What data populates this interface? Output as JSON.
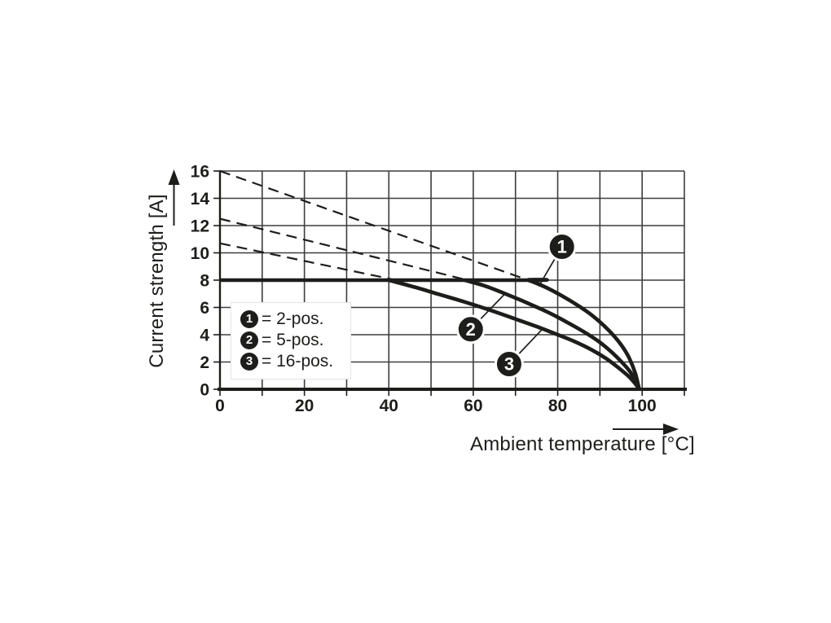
{
  "chart_data": {
    "type": "line",
    "xlabel": "Ambient temperature [°C]",
    "ylabel": "Current strength [A]",
    "xlim": [
      0,
      110
    ],
    "ylim": [
      0,
      16
    ],
    "xgrid_step": 10,
    "ygrid_step": 2,
    "grid": true,
    "xtick_values": [
      0,
      20,
      40,
      60,
      80,
      100
    ],
    "xtick_labels": [
      "0",
      "20",
      "40",
      "60",
      "80",
      "100"
    ],
    "ytick_values": [
      16,
      14,
      12,
      10,
      8,
      6,
      4,
      2,
      0
    ],
    "ytick_labels": [
      "16",
      "14",
      "12",
      "10",
      "8",
      "6",
      "4",
      "2",
      "0"
    ],
    "colors": {
      "ink": "#1d1d1b",
      "grid": "#3d3d3d",
      "background": "#ffffff"
    },
    "current_limit_A": 8,
    "series": [
      {
        "name": "2-pos.",
        "marker": "1",
        "style": "solid",
        "points": [
          [
            0,
            8
          ],
          [
            72,
            8
          ],
          [
            73,
            8
          ],
          [
            77,
            7.5
          ],
          [
            81,
            6.85
          ],
          [
            85,
            6.1
          ],
          [
            88,
            5.45
          ],
          [
            91,
            4.65
          ],
          [
            93.5,
            3.85
          ],
          [
            95.5,
            3.05
          ],
          [
            97,
            2.25
          ],
          [
            98.4,
            1.15
          ],
          [
            99.3,
            0
          ]
        ]
      },
      {
        "name": "5-pos.",
        "marker": "2",
        "style": "solid",
        "points": [
          [
            58,
            8
          ],
          [
            63,
            7.55
          ],
          [
            68,
            6.95
          ],
          [
            73,
            6.3
          ],
          [
            78,
            5.6
          ],
          [
            82,
            4.95
          ],
          [
            86,
            4.25
          ],
          [
            89.5,
            3.55
          ],
          [
            92.5,
            2.8
          ],
          [
            95,
            2.05
          ],
          [
            97,
            1.35
          ],
          [
            98.5,
            0.6
          ],
          [
            99.3,
            0
          ]
        ]
      },
      {
        "name": "16-pos.",
        "marker": "3",
        "style": "solid",
        "points": [
          [
            40,
            8
          ],
          [
            46,
            7.5
          ],
          [
            52,
            6.95
          ],
          [
            58,
            6.4
          ],
          [
            64,
            5.8
          ],
          [
            70,
            5.15
          ],
          [
            75,
            4.6
          ],
          [
            80,
            4.0
          ],
          [
            84,
            3.5
          ],
          [
            88,
            2.9
          ],
          [
            91.5,
            2.25
          ],
          [
            94.5,
            1.55
          ],
          [
            96.8,
            0.95
          ],
          [
            98.4,
            0.4
          ],
          [
            99.3,
            0
          ]
        ]
      }
    ],
    "dashed_guides": [
      {
        "name": "2-pos. linear derating above 8 A limit",
        "points": [
          [
            0,
            16
          ],
          [
            73,
            8
          ]
        ]
      },
      {
        "name": "5-pos. linear derating above 8 A limit",
        "points": [
          [
            0,
            12.5
          ],
          [
            58,
            8.05
          ]
        ]
      },
      {
        "name": "16-pos. linear derating above 8 A limit",
        "points": [
          [
            0,
            10.7
          ],
          [
            41,
            8.05
          ]
        ]
      }
    ],
    "callouts": [
      {
        "label": "1",
        "at": [
          81,
          10.45
        ],
        "touch": [
          75.5,
          7.55
        ]
      },
      {
        "label": "2",
        "at": [
          59.4,
          4.4
        ],
        "touch": [
          67.5,
          7.0
        ]
      },
      {
        "label": "3",
        "at": [
          68.5,
          1.85
        ],
        "touch": [
          76.5,
          4.45
        ]
      }
    ],
    "legend": {
      "position": "inside-left",
      "items": [
        {
          "symbol": "1",
          "label": "= 2-pos."
        },
        {
          "symbol": "2",
          "label": "= 5-pos."
        },
        {
          "symbol": "3",
          "label": "= 16-pos."
        }
      ]
    }
  }
}
